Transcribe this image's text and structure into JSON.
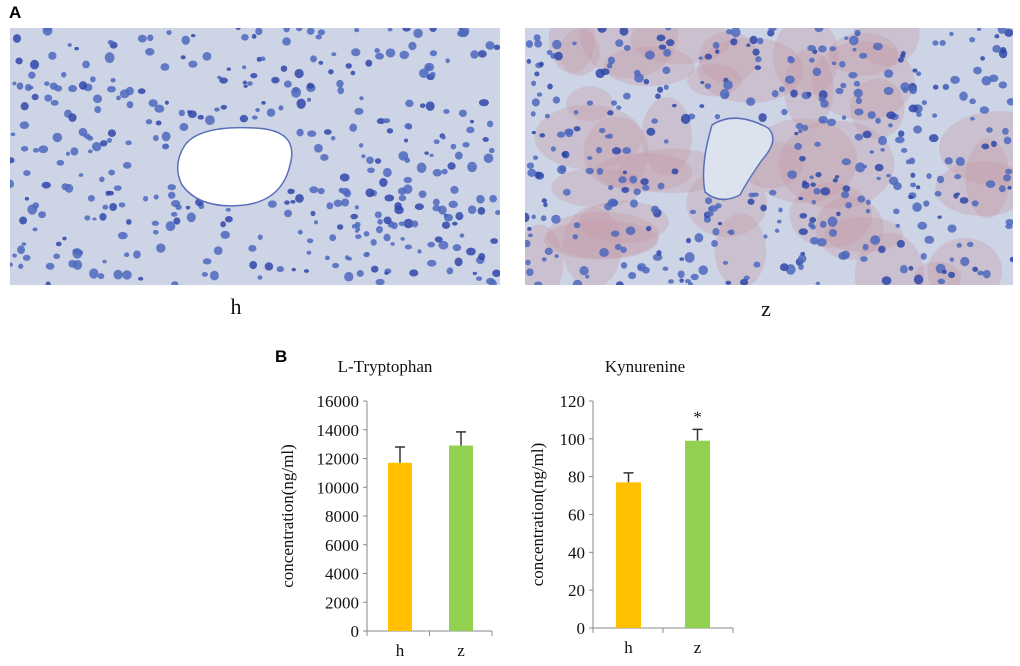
{
  "panels": {
    "a_label": "A",
    "b_label": "B",
    "micrographs": [
      {
        "label": "h",
        "stain_tint": "none"
      },
      {
        "label": "z",
        "stain_tint": "#c9a0a8"
      }
    ]
  },
  "colors": {
    "h": "#FFC000",
    "z": "#92D050"
  },
  "chart_data": [
    {
      "type": "bar",
      "title": "L-Tryptophan",
      "ylabel": "concentration(ng/ml)",
      "xlabel": "",
      "categories": [
        "h",
        "z"
      ],
      "values": [
        11700,
        12900
      ],
      "errors": [
        1100,
        950
      ],
      "ylim": [
        0,
        16000
      ],
      "yticks": [
        "0",
        "2000",
        "4000",
        "6000",
        "8000",
        "10000",
        "12000",
        "14000",
        "16000"
      ],
      "annotations": [
        "",
        ""
      ],
      "grid": false
    },
    {
      "type": "bar",
      "title": "Kynurenine",
      "ylabel": "concentration(ng/ml)",
      "xlabel": "",
      "categories": [
        "h",
        "z"
      ],
      "values": [
        77,
        99
      ],
      "errors": [
        5,
        6
      ],
      "ylim": [
        0,
        120
      ],
      "yticks": [
        "0",
        "20",
        "40",
        "60",
        "80",
        "100",
        "120"
      ],
      "annotations": [
        "",
        "*"
      ],
      "grid": false
    }
  ]
}
